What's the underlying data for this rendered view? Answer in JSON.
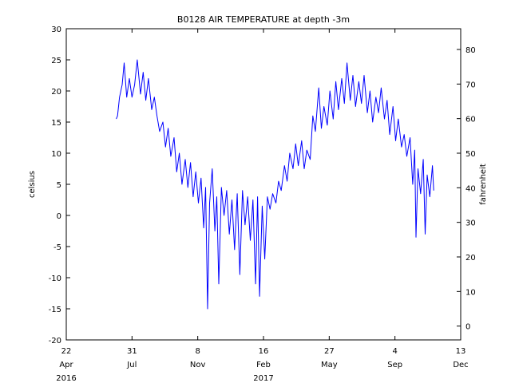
{
  "chart_data": {
    "type": "line",
    "title": "B0128 AIR TEMPERATURE at depth -3m",
    "ylabel": "celsius",
    "y2label": "fahrenheit",
    "ylim": [
      -20,
      30
    ],
    "y2lim": [
      -4,
      86
    ],
    "yticks": [
      -20,
      -15,
      -10,
      -5,
      0,
      5,
      10,
      15,
      20,
      25,
      30
    ],
    "y2ticks": [
      0,
      10,
      20,
      30,
      40,
      50,
      60,
      70,
      80
    ],
    "xlim": [
      "2016-04-22",
      "2017-12-13"
    ],
    "xticks": [
      {
        "date": "2016-04-22",
        "day": "22",
        "month": "Apr",
        "year": "2016"
      },
      {
        "date": "2016-07-31",
        "day": "31",
        "month": "Jul",
        "year": ""
      },
      {
        "date": "2016-11-08",
        "day": "8",
        "month": "Nov",
        "year": ""
      },
      {
        "date": "2017-02-16",
        "day": "16",
        "month": "Feb",
        "year": "2017"
      },
      {
        "date": "2017-05-27",
        "day": "27",
        "month": "May",
        "year": ""
      },
      {
        "date": "2017-09-04",
        "day": "4",
        "month": "Sep",
        "year": ""
      },
      {
        "date": "2017-12-13",
        "day": "13",
        "month": "Dec",
        "year": ""
      }
    ],
    "grid": false,
    "legend": "none",
    "color": "#0000ff",
    "series": [
      {
        "points": [
          {
            "x": "2016-07-07",
            "y": 15.5
          },
          {
            "x": "2016-07-09",
            "y": 16.0
          },
          {
            "x": "2016-07-12",
            "y": 19.0
          },
          {
            "x": "2016-07-16",
            "y": 21.0
          },
          {
            "x": "2016-07-19",
            "y": 24.5
          },
          {
            "x": "2016-07-23",
            "y": 19.0
          },
          {
            "x": "2016-07-27",
            "y": 22.0
          },
          {
            "x": "2016-07-31",
            "y": 19.0
          },
          {
            "x": "2016-08-04",
            "y": 21.0
          },
          {
            "x": "2016-08-08",
            "y": 25.0
          },
          {
            "x": "2016-08-13",
            "y": 19.5
          },
          {
            "x": "2016-08-17",
            "y": 23.0
          },
          {
            "x": "2016-08-21",
            "y": 18.5
          },
          {
            "x": "2016-08-25",
            "y": 22.0
          },
          {
            "x": "2016-08-30",
            "y": 17.0
          },
          {
            "x": "2016-09-03",
            "y": 19.0
          },
          {
            "x": "2016-09-07",
            "y": 16.0
          },
          {
            "x": "2016-09-11",
            "y": 13.5
          },
          {
            "x": "2016-09-16",
            "y": 15.0
          },
          {
            "x": "2016-09-20",
            "y": 11.0
          },
          {
            "x": "2016-09-24",
            "y": 14.0
          },
          {
            "x": "2016-09-28",
            "y": 9.5
          },
          {
            "x": "2016-10-03",
            "y": 12.5
          },
          {
            "x": "2016-10-07",
            "y": 7.0
          },
          {
            "x": "2016-10-11",
            "y": 10.0
          },
          {
            "x": "2016-10-15",
            "y": 5.0
          },
          {
            "x": "2016-10-20",
            "y": 9.0
          },
          {
            "x": "2016-10-24",
            "y": 4.5
          },
          {
            "x": "2016-10-28",
            "y": 8.5
          },
          {
            "x": "2016-11-01",
            "y": 3.0
          },
          {
            "x": "2016-11-05",
            "y": 7.0
          },
          {
            "x": "2016-11-09",
            "y": 2.0
          },
          {
            "x": "2016-11-13",
            "y": 6.0
          },
          {
            "x": "2016-11-17",
            "y": -2.0
          },
          {
            "x": "2016-11-20",
            "y": 4.5
          },
          {
            "x": "2016-11-23",
            "y": -15.0
          },
          {
            "x": "2016-11-26",
            "y": 2.0
          },
          {
            "x": "2016-11-30",
            "y": 7.5
          },
          {
            "x": "2016-12-04",
            "y": -2.5
          },
          {
            "x": "2016-12-07",
            "y": 3.0
          },
          {
            "x": "2016-12-10",
            "y": -11.0
          },
          {
            "x": "2016-12-14",
            "y": 4.5
          },
          {
            "x": "2016-12-18",
            "y": 0.0
          },
          {
            "x": "2016-12-22",
            "y": 4.0
          },
          {
            "x": "2016-12-26",
            "y": -3.0
          },
          {
            "x": "2016-12-30",
            "y": 2.5
          },
          {
            "x": "2017-01-03",
            "y": -5.5
          },
          {
            "x": "2017-01-07",
            "y": 3.5
          },
          {
            "x": "2017-01-11",
            "y": -9.5
          },
          {
            "x": "2017-01-15",
            "y": 4.0
          },
          {
            "x": "2017-01-19",
            "y": -1.5
          },
          {
            "x": "2017-01-23",
            "y": 3.0
          },
          {
            "x": "2017-01-27",
            "y": -4.0
          },
          {
            "x": "2017-01-31",
            "y": 2.5
          },
          {
            "x": "2017-02-04",
            "y": -11.0
          },
          {
            "x": "2017-02-07",
            "y": 3.0
          },
          {
            "x": "2017-02-10",
            "y": -13.0
          },
          {
            "x": "2017-02-14",
            "y": 1.5
          },
          {
            "x": "2017-02-18",
            "y": -7.0
          },
          {
            "x": "2017-02-22",
            "y": 3.0
          },
          {
            "x": "2017-02-26",
            "y": 1.0
          },
          {
            "x": "2017-03-02",
            "y": 3.5
          },
          {
            "x": "2017-03-07",
            "y": 2.0
          },
          {
            "x": "2017-03-11",
            "y": 5.5
          },
          {
            "x": "2017-03-15",
            "y": 4.0
          },
          {
            "x": "2017-03-20",
            "y": 8.0
          },
          {
            "x": "2017-03-24",
            "y": 5.5
          },
          {
            "x": "2017-03-28",
            "y": 10.0
          },
          {
            "x": "2017-04-02",
            "y": 7.5
          },
          {
            "x": "2017-04-06",
            "y": 11.5
          },
          {
            "x": "2017-04-10",
            "y": 8.0
          },
          {
            "x": "2017-04-15",
            "y": 12.0
          },
          {
            "x": "2017-04-19",
            "y": 7.5
          },
          {
            "x": "2017-04-23",
            "y": 10.5
          },
          {
            "x": "2017-04-28",
            "y": 9.0
          },
          {
            "x": "2017-05-02",
            "y": 16.0
          },
          {
            "x": "2017-05-06",
            "y": 13.5
          },
          {
            "x": "2017-05-11",
            "y": 20.5
          },
          {
            "x": "2017-05-15",
            "y": 14.0
          },
          {
            "x": "2017-05-19",
            "y": 17.5
          },
          {
            "x": "2017-05-24",
            "y": 14.5
          },
          {
            "x": "2017-05-28",
            "y": 20.0
          },
          {
            "x": "2017-06-02",
            "y": 15.5
          },
          {
            "x": "2017-06-06",
            "y": 21.5
          },
          {
            "x": "2017-06-10",
            "y": 17.0
          },
          {
            "x": "2017-06-15",
            "y": 22.0
          },
          {
            "x": "2017-06-19",
            "y": 18.0
          },
          {
            "x": "2017-06-23",
            "y": 24.5
          },
          {
            "x": "2017-06-28",
            "y": 18.5
          },
          {
            "x": "2017-07-02",
            "y": 22.5
          },
          {
            "x": "2017-07-06",
            "y": 17.5
          },
          {
            "x": "2017-07-11",
            "y": 21.5
          },
          {
            "x": "2017-07-15",
            "y": 18.0
          },
          {
            "x": "2017-07-19",
            "y": 22.5
          },
          {
            "x": "2017-07-24",
            "y": 16.5
          },
          {
            "x": "2017-07-28",
            "y": 20.0
          },
          {
            "x": "2017-08-01",
            "y": 15.0
          },
          {
            "x": "2017-08-06",
            "y": 19.0
          },
          {
            "x": "2017-08-10",
            "y": 16.5
          },
          {
            "x": "2017-08-14",
            "y": 20.5
          },
          {
            "x": "2017-08-19",
            "y": 15.5
          },
          {
            "x": "2017-08-23",
            "y": 18.5
          },
          {
            "x": "2017-08-27",
            "y": 13.0
          },
          {
            "x": "2017-09-01",
            "y": 17.5
          },
          {
            "x": "2017-09-05",
            "y": 12.0
          },
          {
            "x": "2017-09-09",
            "y": 15.5
          },
          {
            "x": "2017-09-14",
            "y": 11.0
          },
          {
            "x": "2017-09-18",
            "y": 13.0
          },
          {
            "x": "2017-09-22",
            "y": 9.5
          },
          {
            "x": "2017-09-27",
            "y": 12.5
          },
          {
            "x": "2017-10-01",
            "y": 5.0
          },
          {
            "x": "2017-10-04",
            "y": 10.5
          },
          {
            "x": "2017-10-06",
            "y": -3.5
          },
          {
            "x": "2017-10-09",
            "y": 7.5
          },
          {
            "x": "2017-10-13",
            "y": 3.5
          },
          {
            "x": "2017-10-17",
            "y": 9.0
          },
          {
            "x": "2017-10-20",
            "y": -3.0
          },
          {
            "x": "2017-10-23",
            "y": 6.5
          },
          {
            "x": "2017-10-27",
            "y": 3.0
          },
          {
            "x": "2017-10-31",
            "y": 8.0
          },
          {
            "x": "2017-11-02",
            "y": 4.0
          }
        ]
      }
    ]
  }
}
